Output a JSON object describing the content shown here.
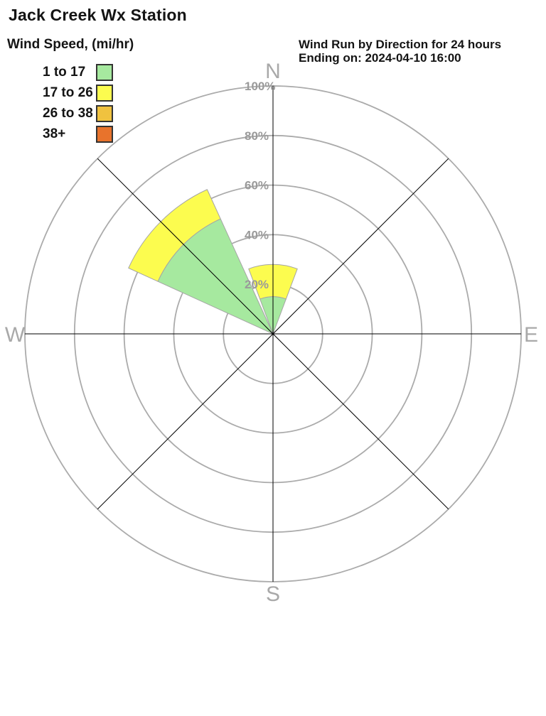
{
  "page": {
    "title": "Jack Creek Wx Station"
  },
  "legend": {
    "title": "Wind Speed, (mi/hr)",
    "items": [
      {
        "label": "1 to 17",
        "color": "#a6e99f"
      },
      {
        "label": "17 to 26",
        "color": "#fcfc4f"
      },
      {
        "label": "26 to 38",
        "color": "#f0c23f"
      },
      {
        "label": "38+",
        "color": "#e8732c"
      }
    ]
  },
  "subtitle": {
    "line1": "Wind Run by Direction for 24 hours",
    "line2": "Ending on: 2024-04-10 16:00"
  },
  "chart_data": {
    "type": "wind_rose",
    "title": "Wind Run by Direction for 24 hours",
    "subtitle": "Ending on: 2024-04-10 16:00",
    "units": "percent of 24-hour wind run",
    "radial_range_pct": [
      0,
      100
    ],
    "grid": true,
    "ring_ticks": [
      {
        "pct": 20,
        "label": "20%"
      },
      {
        "pct": 40,
        "label": "40%"
      },
      {
        "pct": 60,
        "label": "60%"
      },
      {
        "pct": 80,
        "label": "80%"
      },
      {
        "pct": 100,
        "label": "100%"
      }
    ],
    "compass": [
      {
        "dir": "N",
        "deg": 0
      },
      {
        "dir": "E",
        "deg": 90
      },
      {
        "dir": "S",
        "deg": 180
      },
      {
        "dir": "W",
        "deg": 270
      }
    ],
    "axes_deg": [
      0,
      45,
      90,
      135
    ],
    "petal_halfwidth_deg": 20.5,
    "speed_bins": [
      "1 to 17",
      "17 to 26",
      "26 to 38",
      "38+"
    ],
    "sectors": [
      {
        "direction": "N",
        "center_deg": 0,
        "total_pct": 28,
        "segments": [
          {
            "bin": "1 to 17",
            "from_pct": 0,
            "to_pct": 15
          },
          {
            "bin": "17 to 26",
            "from_pct": 15,
            "to_pct": 28
          }
        ]
      },
      {
        "direction": "NE",
        "center_deg": 45,
        "total_pct": 0,
        "segments": []
      },
      {
        "direction": "E",
        "center_deg": 90,
        "total_pct": 0,
        "segments": []
      },
      {
        "direction": "SE",
        "center_deg": 135,
        "total_pct": 0,
        "segments": []
      },
      {
        "direction": "S",
        "center_deg": 180,
        "total_pct": 0,
        "segments": []
      },
      {
        "direction": "SW",
        "center_deg": 225,
        "total_pct": 0,
        "segments": []
      },
      {
        "direction": "W",
        "center_deg": 270,
        "total_pct": 0,
        "segments": []
      },
      {
        "direction": "NW",
        "center_deg": 315,
        "total_pct": 64,
        "segments": [
          {
            "bin": "1 to 17",
            "from_pct": 0,
            "to_pct": 51
          },
          {
            "bin": "17 to 26",
            "from_pct": 51,
            "to_pct": 64
          }
        ]
      }
    ]
  }
}
